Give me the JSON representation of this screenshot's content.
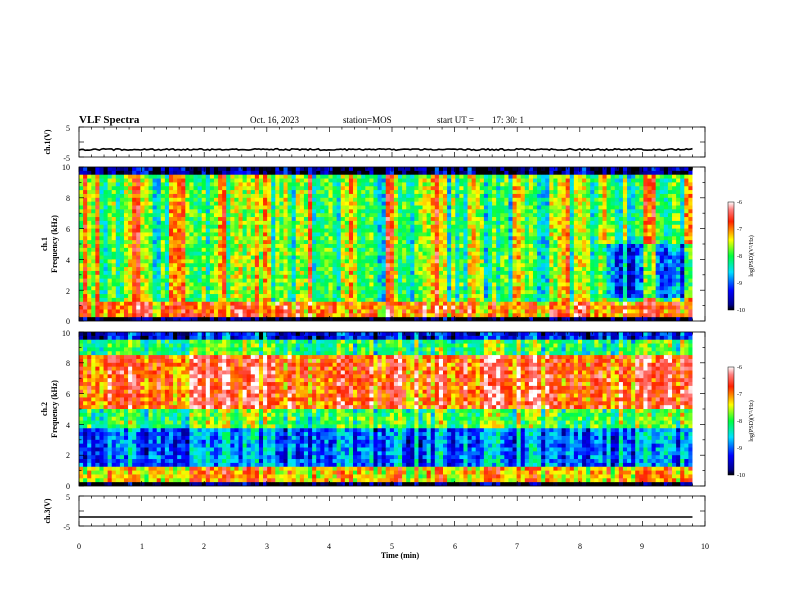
{
  "header": {
    "title": "VLF Spectra",
    "date": "Oct. 16, 2023",
    "station": "station=MOS",
    "start_label": "start  UT  =",
    "start_time": "17: 30: 1"
  },
  "chart_data": [
    {
      "type": "line",
      "panel": "ch1-waveform",
      "ylabel": "ch.1(V)",
      "ylim": [
        -5,
        5
      ],
      "y_tick_labels": [
        "5",
        "-5"
      ],
      "baseline_level_v": -2.5,
      "xlim": [
        0,
        10
      ]
    },
    {
      "type": "heatmap",
      "panel": "ch1-spectrogram",
      "ylabel": "ch.1",
      "ylabel2": "Frequency (kHz)",
      "ylim": [
        0,
        10
      ],
      "y_tick_labels": [
        "0",
        "2",
        "4",
        "6",
        "8",
        "10"
      ],
      "xlim": [
        0,
        10
      ],
      "data_end_min": 9.8,
      "colorbar": {
        "label": "log(PSD)(V²/Hz)",
        "range": [
          -10,
          -6
        ],
        "tick_labels": [
          "-6",
          "-7",
          "-8",
          "-9",
          "-10"
        ]
      }
    },
    {
      "type": "heatmap",
      "panel": "ch2-spectrogram",
      "ylabel": "ch.2",
      "ylabel2": "Frequency (kHz)",
      "ylim": [
        0,
        10
      ],
      "y_tick_labels": [
        "0",
        "2",
        "4",
        "6",
        "8",
        "10"
      ],
      "xlim": [
        0,
        10
      ],
      "data_end_min": 9.8,
      "colorbar": {
        "label": "log(PSD)(V²/Hz)",
        "range": [
          -10,
          -6
        ],
        "tick_labels": [
          "-6",
          "-7",
          "-8",
          "-9",
          "-10"
        ]
      }
    },
    {
      "type": "line",
      "panel": "ch3-waveform",
      "ylabel": "ch.3(V)",
      "ylim": [
        -5,
        5
      ],
      "y_tick_labels": [
        "5",
        "-5"
      ],
      "baseline_level_v": -2.0,
      "xlim": [
        0,
        10
      ],
      "xlabel": "Time  (min)",
      "x_tick_labels": [
        "0",
        "1",
        "2",
        "3",
        "4",
        "5",
        "6",
        "7",
        "8",
        "9",
        "10"
      ]
    }
  ],
  "colors": {
    "colormap": [
      "#000000",
      "#0000ff",
      "#00ffff",
      "#00ff00",
      "#ffff00",
      "#ff0000",
      "#ffffff"
    ]
  }
}
